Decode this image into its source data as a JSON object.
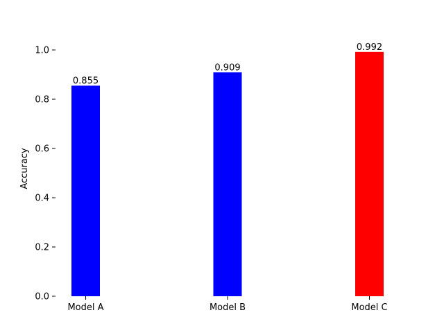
{
  "chart_data": {
    "type": "bar",
    "title": "",
    "xlabel": "",
    "ylabel": "Accuracy",
    "categories": [
      "Model A",
      "Model B",
      "Model C"
    ],
    "values": [
      0.855,
      0.909,
      0.992
    ],
    "value_labels": [
      "0.855",
      "0.909",
      "0.992"
    ],
    "bar_colors": [
      "#0000ff",
      "#0000ff",
      "#ff0000"
    ],
    "ylim": [
      0,
      1.0
    ],
    "yticks": [
      0.0,
      0.2,
      0.4,
      0.6,
      0.8,
      1.0
    ],
    "ytick_labels": [
      "0.0",
      "0.2",
      "0.4",
      "0.6",
      "0.8",
      "1.0"
    ],
    "grid": false,
    "legend": "none"
  }
}
